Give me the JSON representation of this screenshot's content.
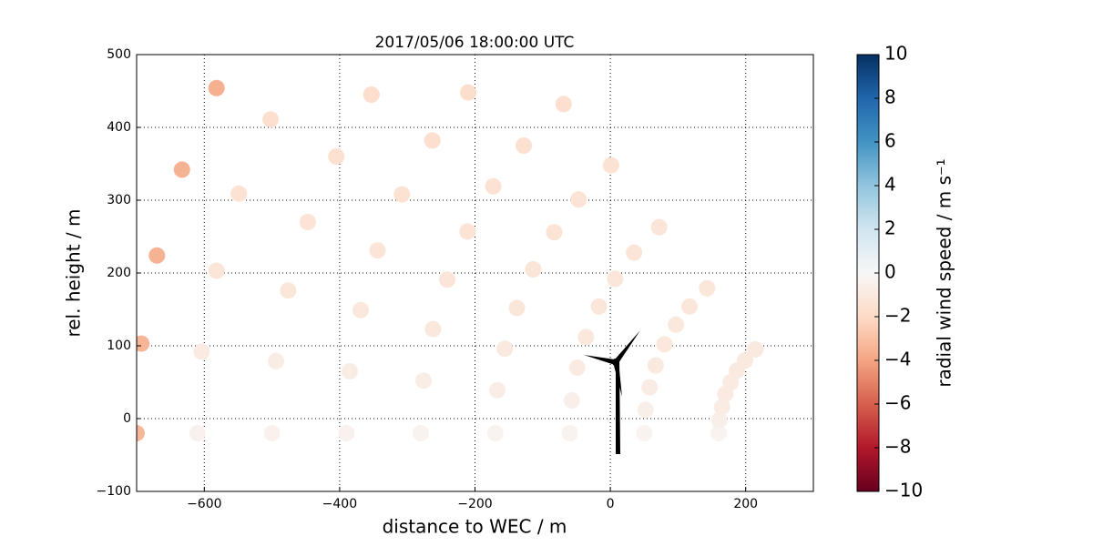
{
  "chart_data": {
    "type": "scatter",
    "title": "2017/05/06 18:00:00 UTC",
    "xlabel": "distance to WEC / m",
    "ylabel": "rel. height / m",
    "colorbar_label": "radial wind speed / m s⁻¹",
    "colormap": "RdBu",
    "xlim": [
      -700,
      300
    ],
    "ylim": [
      -100,
      500
    ],
    "clim": [
      -10,
      10
    ],
    "grid": true,
    "xticks": [
      {
        "value": -600,
        "label": "−600"
      },
      {
        "value": -400,
        "label": "−400"
      },
      {
        "value": -200,
        "label": "−200"
      },
      0,
      200
    ],
    "yticks": [
      {
        "value": -100,
        "label": "−100"
      },
      0,
      100,
      200,
      300,
      400,
      500
    ],
    "cticks": [
      {
        "value": -10,
        "label": "−10"
      },
      {
        "value": -8,
        "label": "−8"
      },
      {
        "value": -6,
        "label": "−6"
      },
      {
        "value": -4,
        "label": "−4"
      },
      {
        "value": -2,
        "label": "−2"
      },
      0,
      2,
      4,
      6,
      8,
      10
    ],
    "x": [
      160,
      161,
      165,
      170,
      178,
      187,
      199,
      214,
      50,
      52,
      58,
      67,
      80,
      97,
      117,
      143,
      -60,
      -57,
      -49,
      -36,
      -17,
      7,
      35,
      72,
      -170,
      -167,
      -156,
      -138,
      -114,
      -83,
      -47,
      1,
      -280,
      -276,
      -262,
      -241,
      -211,
      -173,
      -128,
      -69,
      -390,
      -385,
      -369,
      -344,
      -308,
      -263,
      -210,
      -500,
      -494,
      -476,
      -447,
      -405,
      -353,
      -610,
      -604,
      -582,
      -549,
      -502,
      -700,
      -693,
      -670,
      -633,
      -582
    ],
    "y": [
      -20,
      -2,
      16,
      34,
      50,
      66,
      80,
      95,
      -20,
      12,
      43,
      73,
      102,
      129,
      154,
      179,
      -20,
      25,
      70,
      112,
      154,
      192,
      228,
      263,
      -20,
      39,
      96,
      152,
      205,
      256,
      301,
      348,
      -20,
      52,
      123,
      191,
      257,
      319,
      375,
      432,
      -20,
      65,
      149,
      231,
      308,
      382,
      448,
      -20,
      79,
      176,
      270,
      360,
      445,
      -20,
      92,
      203,
      309,
      411,
      -20,
      103,
      224,
      342,
      454
    ],
    "values": [
      -0.3,
      -0.6,
      -0.8,
      -0.9,
      -0.9,
      -1,
      -1,
      -1,
      -0.3,
      -0.6,
      -0.8,
      -1,
      -1.1,
      -1.1,
      -1.2,
      -1.2,
      -0.3,
      -0.6,
      -0.9,
      -1.1,
      -1.2,
      -1.2,
      -1.3,
      -1.3,
      -0.3,
      -0.7,
      -1,
      -1.2,
      -1.3,
      -1.4,
      -1.4,
      -1.5,
      -0.3,
      -0.7,
      -1.1,
      -1.3,
      -1.4,
      -1.5,
      -1.6,
      -1.7,
      -0.4,
      -0.8,
      -1.1,
      -1.3,
      -1.5,
      -1.7,
      -1.8,
      -0.4,
      -0.8,
      -1.2,
      -1.4,
      -1.6,
      -1.8,
      -0.4,
      -0.9,
      -1.3,
      -1.5,
      -1.7,
      -3.3,
      -3.4,
      -3.5,
      -3.5,
      -3.6
    ]
  }
}
